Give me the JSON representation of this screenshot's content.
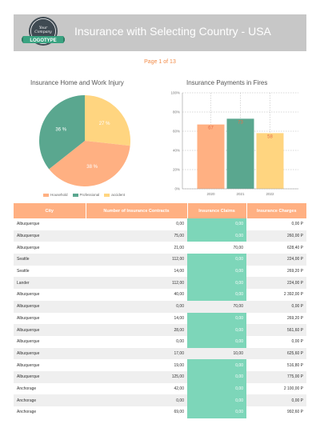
{
  "header": {
    "logo_text_top": "Your Company",
    "logo_text_bottom": "LOGOTYPE",
    "title": "Insurance with Selecting Country - USA"
  },
  "page_label": "Page 1 of 13",
  "colors": {
    "household": "#ffb082",
    "professional": "#5aa78f",
    "accident": "#ffd580",
    "claims_highlight": "#7dd6b9",
    "header_bg": "#c7c7c7"
  },
  "chart_data": [
    {
      "type": "pie",
      "title": "Insurance Home and Work Injury",
      "labels": [
        "Household",
        "Professional",
        "accident"
      ],
      "values": [
        38,
        36,
        27
      ],
      "slice_labels": [
        "38 %",
        "36 %",
        "27 %"
      ],
      "legend": "bottom"
    },
    {
      "type": "bar",
      "title": "Insurance Payments in Fires",
      "categories": [
        "2020",
        "2021",
        "2022"
      ],
      "values": [
        67,
        73,
        58
      ],
      "data_labels": [
        "67",
        "73",
        "58"
      ],
      "ylim": [
        0,
        100
      ],
      "yticks": [
        "0%",
        "20%",
        "40%",
        "60%",
        "80%",
        "100%"
      ],
      "grid": true
    }
  ],
  "table": {
    "columns": [
      "City",
      "Number of Insurance Contracts",
      "Insurance Claims",
      "Insurance Charges"
    ],
    "rows": [
      {
        "city": "Albuquerque",
        "contracts": "0,00",
        "claims": "0,00",
        "charges": "0,00 P",
        "hi": true
      },
      {
        "city": "Albuquerque",
        "contracts": "75,00",
        "claims": "0,00",
        "charges": "260,00 P",
        "hi": true
      },
      {
        "city": "Albuquerque",
        "contracts": "21,00",
        "claims": "70,00",
        "charges": "628,40 P",
        "hi": false
      },
      {
        "city": "Seattle",
        "contracts": "112,00",
        "claims": "0,00",
        "charges": "224,00 P",
        "hi": true
      },
      {
        "city": "Seattle",
        "contracts": "14,00",
        "claims": "0,00",
        "charges": "269,20 P",
        "hi": true
      },
      {
        "city": "Lander",
        "contracts": "112,00",
        "claims": "0,00",
        "charges": "224,00 P",
        "hi": true
      },
      {
        "city": "Albuquerque",
        "contracts": "40,00",
        "claims": "0,00",
        "charges": "2 392,00 P",
        "hi": true
      },
      {
        "city": "Albuquerque",
        "contracts": "0,00",
        "claims": "70,00",
        "charges": "0,00 P",
        "hi": false
      },
      {
        "city": "Albuquerque",
        "contracts": "14,00",
        "claims": "0,00",
        "charges": "269,20 P",
        "hi": true
      },
      {
        "city": "Albuquerque",
        "contracts": "28,00",
        "claims": "0,00",
        "charges": "561,60 P",
        "hi": true
      },
      {
        "city": "Albuquerque",
        "contracts": "0,00",
        "claims": "0,00",
        "charges": "0,00 P",
        "hi": true
      },
      {
        "city": "Albuquerque",
        "contracts": "17,00",
        "claims": "10,00",
        "charges": "625,60 P",
        "hi": false
      },
      {
        "city": "Albuquerque",
        "contracts": "19,00",
        "claims": "0,00",
        "charges": "516,80 P",
        "hi": true
      },
      {
        "city": "Albuquerque",
        "contracts": "125,00",
        "claims": "0,00",
        "charges": "775,00 P",
        "hi": true
      },
      {
        "city": "Anchorage",
        "contracts": "42,00",
        "claims": "0,00",
        "charges": "2 100,00 P",
        "hi": true
      },
      {
        "city": "Anchorage",
        "contracts": "0,00",
        "claims": "0,00",
        "charges": "0,00 P",
        "hi": true
      },
      {
        "city": "Anchorage",
        "contracts": "69,00",
        "claims": "0,00",
        "charges": "992,60 P",
        "hi": true
      }
    ]
  }
}
